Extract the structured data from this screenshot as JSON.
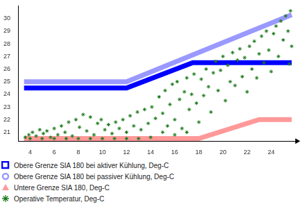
{
  "chart_data": {
    "type": "scatter",
    "xlim": [
      3,
      26
    ],
    "xticks": [
      4,
      6,
      8,
      10,
      12,
      14,
      16,
      18,
      20,
      22,
      24
    ],
    "ylim": [
      20.3,
      31
    ],
    "yticks": [
      21,
      22,
      23,
      24,
      25,
      26,
      27,
      28,
      29,
      30
    ],
    "grid": false,
    "legend": "bottom left",
    "series": [
      {
        "name": "Obere Grenze SIA 180 bei aktiver Kühlung, Deg-C",
        "color": "#0000ff",
        "type": "line",
        "marker": "square",
        "line_style": "solid",
        "x": [
          3.5,
          12,
          17.5,
          25.7
        ],
        "values": [
          24.5,
          24.5,
          26.5,
          26.5
        ]
      },
      {
        "name": "Obere Grenze SIA 180 bei passiver Kühlung, Deg-C",
        "color": "#9999ff",
        "type": "line",
        "marker": "circle",
        "line_style": "solid",
        "x": [
          3.5,
          12,
          25.7
        ],
        "values": [
          25,
          25,
          30.3
        ]
      },
      {
        "name": "Untere Grenze SIA 180, Deg-C",
        "color": "#ff9999",
        "type": "line",
        "marker": "triangle",
        "line_style": "solid",
        "x": [
          3.5,
          18,
          23,
          25.7
        ],
        "values": [
          20.5,
          20.5,
          22,
          22
        ]
      },
      {
        "name": "Operative Temperatur, Deg-C",
        "color": "#1e7b1e",
        "type": "scatter",
        "marker": "star",
        "x": [
          3.6,
          3.9,
          4.2,
          4.5,
          4.8,
          5.1,
          5.4,
          5.7,
          6.0,
          6.3,
          6.6,
          6.9,
          7.2,
          7.5,
          7.8,
          8.1,
          8.4,
          8.7,
          9.0,
          9.3,
          9.6,
          9.9,
          10.2,
          10.5,
          10.8,
          11.1,
          11.4,
          11.7,
          12.0,
          12.3,
          12.6,
          12.9,
          13.2,
          13.5,
          13.8,
          14.1,
          14.4,
          4.0,
          6.0,
          8.0,
          10.0,
          12.0,
          14.0,
          5.0,
          7.0,
          9.0,
          11.0,
          13.0,
          14.7,
          15.0,
          15.2,
          15.4,
          15.6,
          15.8,
          16.0,
          16.2,
          16.4,
          16.6,
          16.8,
          17.0,
          17.2,
          17.4,
          17.6,
          17.8,
          18.0,
          15.0,
          16.0,
          17.0,
          18.2,
          18.4,
          18.6,
          18.8,
          19.0,
          19.2,
          19.4,
          19.6,
          19.8,
          20.0,
          20.2,
          20.4,
          20.6,
          20.8,
          21.0,
          21.2,
          21.4,
          21.6,
          21.8,
          22.0,
          22.2,
          22.4,
          22.6,
          22.8,
          23.0,
          23.2,
          23.4,
          23.6,
          23.8,
          24.0,
          24.2,
          24.4,
          24.6,
          24.8,
          25.0,
          25.2,
          25.4,
          25.6,
          25.7,
          25.5
        ],
        "values": [
          20.6,
          20.8,
          21.0,
          20.7,
          21.2,
          20.9,
          21.1,
          20.6,
          21.3,
          20.8,
          21.5,
          21.0,
          21.8,
          20.7,
          22.0,
          21.4,
          22.4,
          21.1,
          22.2,
          20.8,
          21.7,
          22.0,
          21.2,
          21.6,
          20.9,
          21.8,
          21.3,
          22.0,
          21.0,
          22.3,
          21.5,
          22.6,
          21.2,
          22.8,
          21.7,
          23.0,
          22.1,
          20.5,
          20.5,
          20.5,
          20.5,
          20.5,
          20.6,
          20.5,
          20.5,
          20.5,
          20.5,
          20.5,
          23.8,
          22.5,
          24.3,
          21.5,
          23.2,
          24.8,
          22.0,
          25.0,
          23.6,
          21.3,
          24.2,
          25.3,
          22.8,
          24.0,
          25.6,
          23.3,
          21.8,
          21.0,
          20.8,
          21.0,
          25.2,
          23.9,
          26.0,
          24.6,
          22.6,
          25.7,
          26.6,
          24.3,
          25.9,
          27.0,
          23.5,
          26.3,
          25.0,
          27.3,
          24.7,
          26.7,
          27.6,
          25.4,
          26.9,
          24.2,
          27.8,
          26.0,
          28.2,
          25.3,
          27.2,
          28.6,
          26.5,
          29.0,
          27.5,
          25.8,
          28.8,
          29.4,
          27.0,
          29.8,
          28.3,
          30.2,
          29.0,
          30.6,
          27.8,
          26.4
        ]
      }
    ]
  }
}
